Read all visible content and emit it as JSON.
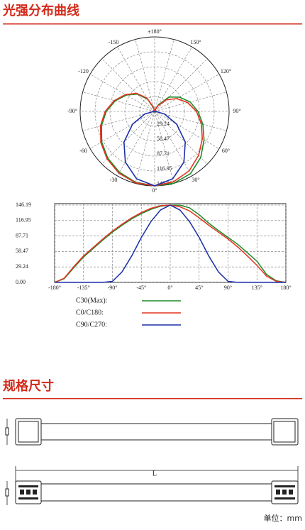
{
  "sections": [
    {
      "title": "光强分布曲线"
    },
    {
      "title": "规格尺寸"
    }
  ],
  "polar_angle_ticks": [
    {
      "value": -180,
      "label": "±180°"
    },
    {
      "value": -150,
      "label": "-150"
    },
    {
      "value": -120,
      "label": "-120"
    },
    {
      "value": -90,
      "label": "-90°"
    },
    {
      "value": -60,
      "label": "-60"
    },
    {
      "value": -30,
      "label": "-30"
    },
    {
      "value": 0,
      "label": "0°"
    },
    {
      "value": 30,
      "label": "30°"
    },
    {
      "value": 60,
      "label": "60°"
    },
    {
      "value": 90,
      "label": "90°"
    },
    {
      "value": 120,
      "label": "120°"
    },
    {
      "value": 150,
      "label": "150°"
    }
  ],
  "chart_data": {
    "type": "line",
    "x": [
      -180,
      -165,
      -150,
      -135,
      -120,
      -105,
      -90,
      -75,
      -60,
      -45,
      -30,
      -15,
      0,
      15,
      30,
      45,
      60,
      75,
      90,
      105,
      120,
      135,
      150,
      165,
      180
    ],
    "xlim": [
      -180,
      180
    ],
    "xticks": [
      {
        "value": -180,
        "label": "-180°"
      },
      {
        "value": -135,
        "label": "-135°"
      },
      {
        "value": -90,
        "label": "-90°"
      },
      {
        "value": -45,
        "label": "-45°"
      },
      {
        "value": 0,
        "label": "0°"
      },
      {
        "value": 45,
        "label": "45°"
      },
      {
        "value": 90,
        "label": "90°"
      },
      {
        "value": 135,
        "label": "135°"
      },
      {
        "value": 180,
        "label": "180°"
      }
    ],
    "ylim": [
      0,
      146.19
    ],
    "yticks": [
      {
        "value": 0,
        "label": "0.00"
      },
      29.24,
      58.47,
      87.71,
      116.95,
      146.19
    ],
    "grid": true,
    "series": [
      {
        "name": "C30(Max):",
        "color": "#1f8a2a",
        "values": [
          0,
          7,
          28,
          48,
          64,
          80,
          95,
          108,
          120,
          130,
          138,
          144,
          146,
          146,
          141,
          128,
          112,
          98,
          85,
          72,
          56,
          40,
          15,
          3,
          0
        ]
      },
      {
        "name": "C0/C180:",
        "color": "#e23420",
        "values": [
          0,
          8,
          30,
          50,
          66,
          82,
          97,
          110,
          122,
          132,
          140,
          145,
          146,
          143,
          135,
          122,
          108,
          95,
          82,
          67,
          50,
          32,
          12,
          2,
          0
        ]
      },
      {
        "name": "C90/C270:",
        "color": "#1a2fa8",
        "values": [
          0,
          0,
          0,
          0,
          0,
          0,
          2,
          20,
          50,
          85,
          115,
          137,
          146,
          137,
          115,
          85,
          50,
          20,
          2,
          0,
          0,
          0,
          0,
          0,
          0
        ]
      }
    ]
  },
  "dimension": {
    "label": "L"
  },
  "unit": "单位：mm"
}
